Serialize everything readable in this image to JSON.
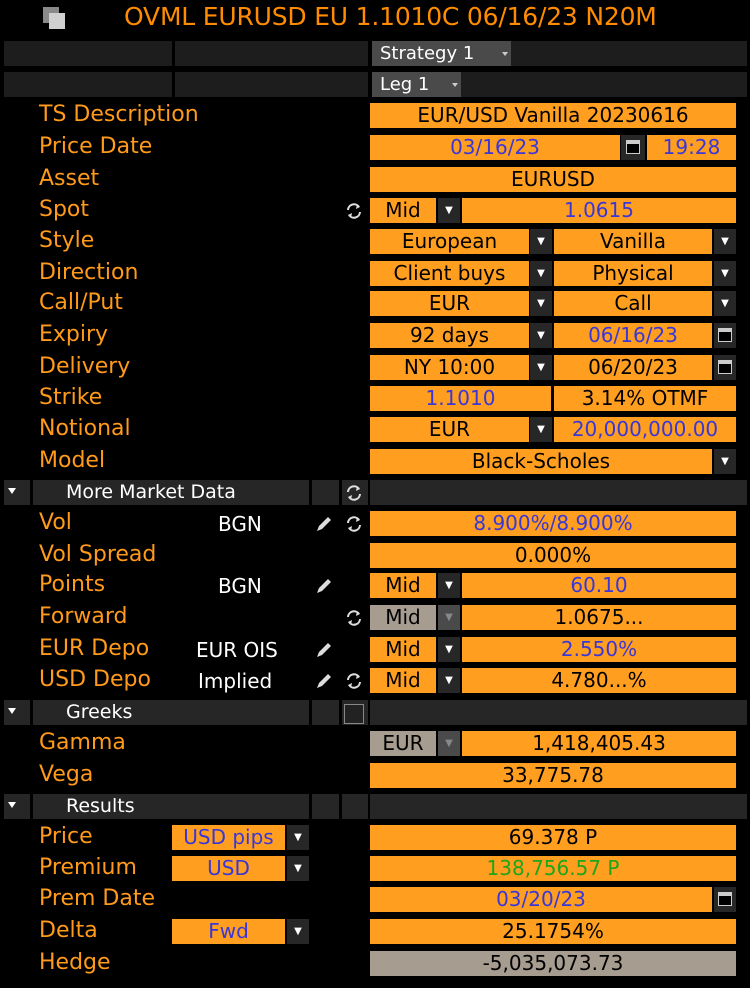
{
  "header": {
    "title": "OVML EURUSD EU 1.1010C 06/16/23 N20M"
  },
  "strategy_dropdown": "Strategy 1",
  "leg_dropdown": "Leg 1",
  "fields": {
    "ts_description": {
      "label": "TS Description",
      "value": "EUR/USD Vanilla 20230616"
    },
    "price_date": {
      "label": "Price Date",
      "date": "03/16/23",
      "time": "19:28"
    },
    "asset": {
      "label": "Asset",
      "value": "EURUSD"
    },
    "spot": {
      "label": "Spot",
      "side": "Mid",
      "value": "1.0615"
    },
    "style": {
      "label": "Style",
      "type": "European",
      "variant": "Vanilla"
    },
    "direction": {
      "label": "Direction",
      "who": "Client buys",
      "settle": "Physical"
    },
    "call_put": {
      "label": "Call/Put",
      "ccy": "EUR",
      "type": "Call"
    },
    "expiry": {
      "label": "Expiry",
      "tenor": "92 days",
      "date": "06/16/23"
    },
    "delivery": {
      "label": "Delivery",
      "cut": "NY 10:00",
      "date": "06/20/23"
    },
    "strike": {
      "label": "Strike",
      "value": "1.1010",
      "moneyness": "3.14% OTMF"
    },
    "notional": {
      "label": "Notional",
      "ccy": "EUR",
      "value": "20,000,000.00"
    },
    "model": {
      "label": "Model",
      "value": "Black-Scholes"
    }
  },
  "market_data": {
    "section_label": "More Market Data",
    "vol": {
      "label": "Vol",
      "source": "BGN",
      "value": "8.900%/8.900%"
    },
    "vol_spread": {
      "label": "Vol Spread",
      "value": "0.000%"
    },
    "points": {
      "label": "Points",
      "source": "BGN",
      "side": "Mid",
      "value": "60.10"
    },
    "forward": {
      "label": "Forward",
      "side": "Mid",
      "value": "1.0675..."
    },
    "eur_depo": {
      "label": "EUR Depo",
      "source": "EUR OIS",
      "side": "Mid",
      "value": "2.550%"
    },
    "usd_depo": {
      "label": "USD Depo",
      "source": "Implied",
      "side": "Mid",
      "value": "4.780...%"
    }
  },
  "greeks": {
    "section_label": "Greeks",
    "gamma": {
      "label": "Gamma",
      "ccy": "EUR",
      "value": "1,418,405.43"
    },
    "vega": {
      "label": "Vega",
      "value": "33,775.78"
    }
  },
  "results": {
    "section_label": "Results",
    "price": {
      "label": "Price",
      "unit": "USD pips",
      "value": "69.378 P"
    },
    "premium": {
      "label": "Premium",
      "ccy": "USD",
      "value": "138,756.57 P"
    },
    "prem_date": {
      "label": "Prem Date",
      "value": "03/20/23"
    },
    "delta": {
      "label": "Delta",
      "type": "Fwd",
      "value": "25.1754%"
    },
    "hedge": {
      "label": "Hedge",
      "value": "-5,035,073.73"
    }
  },
  "colors": {
    "accent": "#ff9e1f",
    "label": "#ff9a1a",
    "blue_value": "#3a37d8",
    "green_value": "#1fa51a"
  }
}
